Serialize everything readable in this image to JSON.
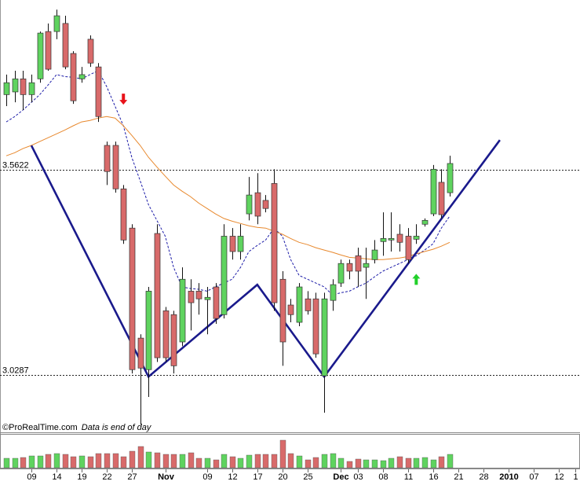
{
  "chart_data": {
    "type": "candlestick",
    "ylim": [
      2.88,
      4.004
    ],
    "categories": [
      null,
      null,
      null,
      "09",
      null,
      null,
      "14",
      null,
      null,
      "19",
      null,
      null,
      "22",
      null,
      null,
      "27",
      null,
      null,
      null,
      "Nov",
      null,
      null,
      null,
      null,
      "09",
      null,
      null,
      "12",
      null,
      null,
      "17",
      null,
      null,
      "20",
      null,
      null,
      "25",
      null,
      null,
      null,
      "Dec",
      null,
      "03",
      null,
      null,
      "08",
      null,
      null,
      "11",
      null,
      null,
      "16",
      null,
      null,
      "21",
      null,
      null,
      "28",
      null,
      null,
      "2010",
      null,
      null,
      "07",
      null,
      null,
      "12",
      null,
      "1"
    ],
    "open": [
      3.758,
      3.765,
      3.799,
      3.758,
      3.799,
      3.922,
      3.922,
      3.943,
      3.865,
      3.799,
      3.902,
      3.83,
      3.626,
      3.626,
      3.513,
      3.411,
      3.125,
      3.043,
      3.397,
      3.196,
      3.186,
      3.115,
      3.247,
      3.247,
      3.225,
      3.258,
      3.186,
      3.39,
      3.35,
      3.448,
      3.503,
      3.483,
      3.527,
      3.278,
      3.211,
      3.166,
      3.227,
      3.227,
      3.027,
      3.223,
      3.268,
      3.319,
      3.339,
      3.309,
      3.329,
      3.376,
      3.38,
      3.395,
      3.39,
      3.382,
      3.421,
      3.448,
      3.53,
      3.503,
      null,
      null,
      null,
      null,
      null,
      null,
      null,
      null,
      null,
      null,
      null,
      null,
      null,
      null,
      null
    ],
    "high": [
      3.81,
      3.82,
      3.82,
      3.81,
      3.922,
      3.943,
      3.979,
      3.963,
      3.871,
      3.83,
      3.912,
      3.84,
      3.636,
      3.636,
      3.523,
      3.421,
      3.135,
      3.258,
      3.421,
      3.206,
      3.196,
      3.309,
      3.278,
      3.268,
      3.258,
      3.268,
      3.421,
      3.411,
      3.421,
      3.544,
      3.554,
      3.497,
      3.564,
      3.299,
      3.227,
      3.268,
      3.247,
      3.243,
      3.243,
      3.278,
      3.329,
      3.329,
      3.36,
      3.36,
      3.38,
      3.452,
      3.452,
      3.421,
      3.411,
      3.421,
      3.436,
      3.575,
      3.564,
      3.599,
      null,
      null,
      null,
      null,
      null,
      null,
      null,
      null,
      null,
      null,
      null,
      null,
      null,
      null,
      null
    ],
    "low": [
      3.728,
      3.738,
      3.718,
      3.738,
      3.789,
      3.82,
      3.902,
      3.824,
      3.734,
      3.789,
      3.83,
      3.687,
      3.523,
      3.503,
      3.37,
      3.033,
      2.9,
      2.972,
      3.063,
      3.063,
      3.033,
      3.104,
      3.145,
      3.186,
      3.135,
      3.162,
      3.176,
      3.329,
      3.329,
      3.431,
      3.421,
      3.452,
      3.196,
      3.053,
      3.166,
      3.156,
      3.186,
      3.074,
      2.931,
      3.196,
      3.258,
      3.278,
      3.258,
      3.227,
      3.319,
      3.339,
      3.35,
      3.35,
      3.319,
      3.37,
      3.415,
      3.442,
      3.436,
      3.493,
      null,
      null,
      null,
      null,
      null,
      null,
      null,
      null,
      null,
      null,
      null,
      null,
      null,
      null,
      null
    ],
    "close": [
      3.789,
      3.799,
      3.758,
      3.789,
      3.918,
      3.824,
      3.963,
      3.83,
      3.742,
      3.81,
      3.84,
      3.701,
      3.558,
      3.513,
      3.38,
      3.043,
      3.047,
      3.247,
      3.074,
      3.074,
      3.053,
      3.278,
      3.217,
      3.227,
      3.231,
      3.176,
      3.39,
      3.35,
      3.39,
      3.497,
      3.442,
      3.462,
      3.217,
      3.115,
      3.186,
      3.258,
      3.196,
      3.084,
      3.227,
      3.264,
      3.319,
      3.299,
      3.299,
      3.319,
      3.354,
      3.384,
      3.384,
      3.374,
      3.329,
      3.39,
      3.431,
      3.564,
      3.446,
      3.579,
      null,
      null,
      null,
      null,
      null,
      null,
      null,
      null,
      null,
      null,
      null,
      null,
      null,
      null,
      null
    ],
    "up_color": "#5fd35f",
    "down_color": "#d86a6a",
    "moving_averages": [
      {
        "color": "#1c1ca8",
        "dashed": true,
        "values": [
          3.687,
          3.701,
          3.718,
          3.738,
          3.758,
          3.783,
          3.81,
          3.805,
          3.803,
          3.799,
          3.81,
          3.82,
          3.779,
          3.728,
          3.677,
          3.595,
          3.534,
          3.472,
          3.431,
          3.39,
          3.309,
          3.258,
          3.254,
          3.252,
          3.247,
          3.258,
          3.268,
          3.278,
          3.309,
          3.35,
          3.366,
          3.38,
          3.411,
          3.39,
          3.329,
          3.288,
          3.278,
          3.268,
          3.258,
          3.237,
          3.243,
          3.247,
          3.258,
          3.268,
          3.284,
          3.299,
          3.309,
          3.319,
          3.329,
          3.339,
          3.354,
          3.37,
          3.411,
          3.442,
          null,
          null,
          null,
          null,
          null,
          null,
          null,
          null,
          null,
          null,
          null,
          null,
          null,
          null,
          null
        ]
      },
      {
        "color": "#e8892e",
        "dashed": false,
        "values": [
          3.599,
          3.607,
          3.618,
          3.626,
          3.636,
          3.646,
          3.656,
          3.666,
          3.677,
          3.687,
          3.691,
          3.697,
          3.701,
          3.697,
          3.677,
          3.652,
          3.626,
          3.595,
          3.57,
          3.546,
          3.523,
          3.507,
          3.493,
          3.476,
          3.462,
          3.448,
          3.436,
          3.429,
          3.423,
          3.417,
          3.413,
          3.411,
          3.403,
          3.395,
          3.384,
          3.374,
          3.368,
          3.36,
          3.354,
          3.348,
          3.341,
          3.335,
          3.333,
          3.331,
          3.329,
          3.329,
          3.331,
          3.333,
          3.337,
          3.344,
          3.35,
          3.356,
          3.364,
          3.374,
          null,
          null,
          null,
          null,
          null,
          null,
          null,
          null,
          null,
          null,
          null,
          null,
          null,
          null,
          null
        ]
      }
    ],
    "trendline": {
      "color": "#1a1a8c",
      "x": [
        3,
        17,
        30,
        38,
        59
      ],
      "values": [
        3.6256,
        3.0246,
        3.2638,
        3.0246,
        3.6399
      ]
    },
    "reference_lines": [
      3.5622,
      3.0287
    ],
    "signals": [
      {
        "x": 14,
        "value": 3.732,
        "direction": "down",
        "color": "#e8121a"
      },
      {
        "x": 49,
        "value": 3.292,
        "direction": "up",
        "color": "#22d02a"
      }
    ],
    "volume": {
      "ylim": [
        0,
        42
      ],
      "values": [
        12,
        12,
        13,
        15,
        15,
        17,
        18,
        17,
        14,
        15,
        14,
        18,
        18,
        18,
        14,
        21,
        27,
        20,
        19,
        17,
        17,
        17,
        19,
        12,
        12,
        10,
        17,
        14,
        12,
        16,
        17,
        17,
        17,
        35,
        18,
        15,
        10,
        13,
        17,
        18,
        12,
        8,
        11,
        10,
        10,
        9,
        12,
        14,
        12,
        12,
        13,
        10,
        14,
        17,
        null,
        null,
        null,
        null,
        null,
        null,
        null,
        null,
        null,
        null,
        null,
        null,
        null,
        null,
        null
      ]
    },
    "footer": {
      "source": "©ProRealTime.com",
      "note": "Data is end of day"
    }
  }
}
